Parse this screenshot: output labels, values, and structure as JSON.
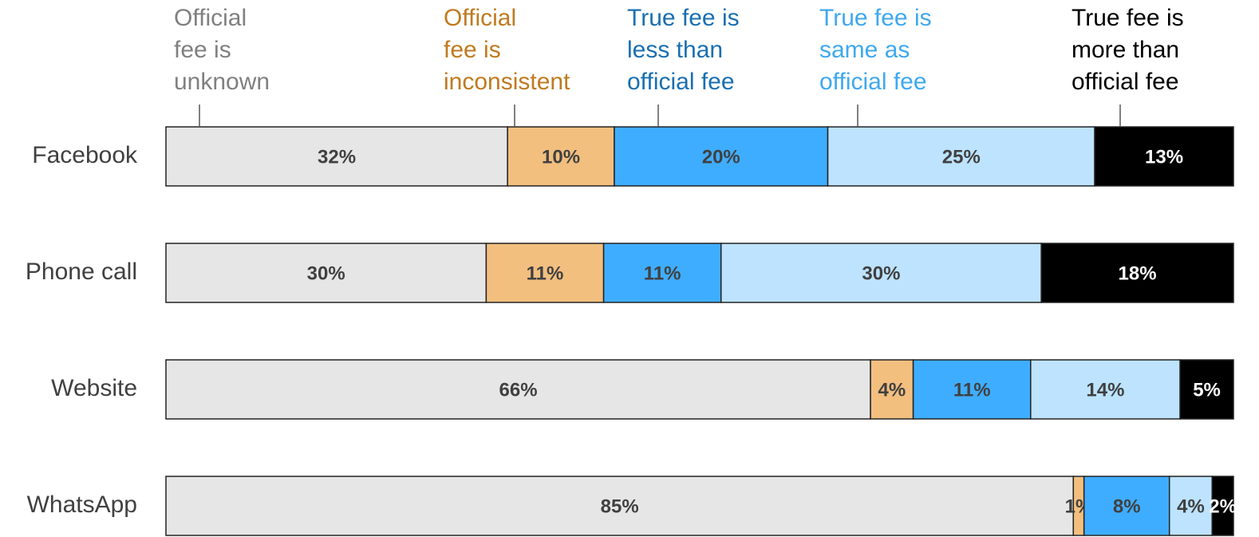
{
  "chart_data": {
    "type": "stacked_bar_horizontal",
    "categories": [
      "Facebook",
      "Phone call",
      "Website",
      "WhatsApp"
    ],
    "series": [
      {
        "name": "Official\nfee is\nunknown",
        "color": "#e6e6e6",
        "label_color": "#808080",
        "values": [
          32,
          30,
          66,
          85
        ],
        "value_labels": [
          "32%",
          "30%",
          "66%",
          "85%"
        ]
      },
      {
        "name": "Official\nfee is\ninconsistent",
        "color": "#f2bf7f",
        "label_color": "#c07a20",
        "values": [
          10,
          11,
          4,
          1
        ],
        "value_labels": [
          "10%",
          "11%",
          "4%",
          "1%"
        ]
      },
      {
        "name": "True fee is\nless than\nofficial fee",
        "color": "#3fadff",
        "label_color": "#1a6fb0",
        "values": [
          20,
          11,
          11,
          8
        ],
        "value_labels": [
          "20%",
          "11%",
          "11%",
          "8%"
        ]
      },
      {
        "name": "True fee is\nsame as\nofficial fee",
        "color": "#bde3ff",
        "label_color": "#3fa8ef",
        "values": [
          25,
          30,
          14,
          4
        ],
        "value_labels": [
          "25%",
          "30%",
          "14%",
          "4%"
        ]
      },
      {
        "name": "True fee is\nmore than\nofficial fee",
        "color": "#000000",
        "label_color": "#000000",
        "values": [
          13,
          18,
          5,
          2
        ],
        "value_labels": [
          "13%",
          "18%",
          "5%",
          "2%"
        ]
      }
    ]
  }
}
